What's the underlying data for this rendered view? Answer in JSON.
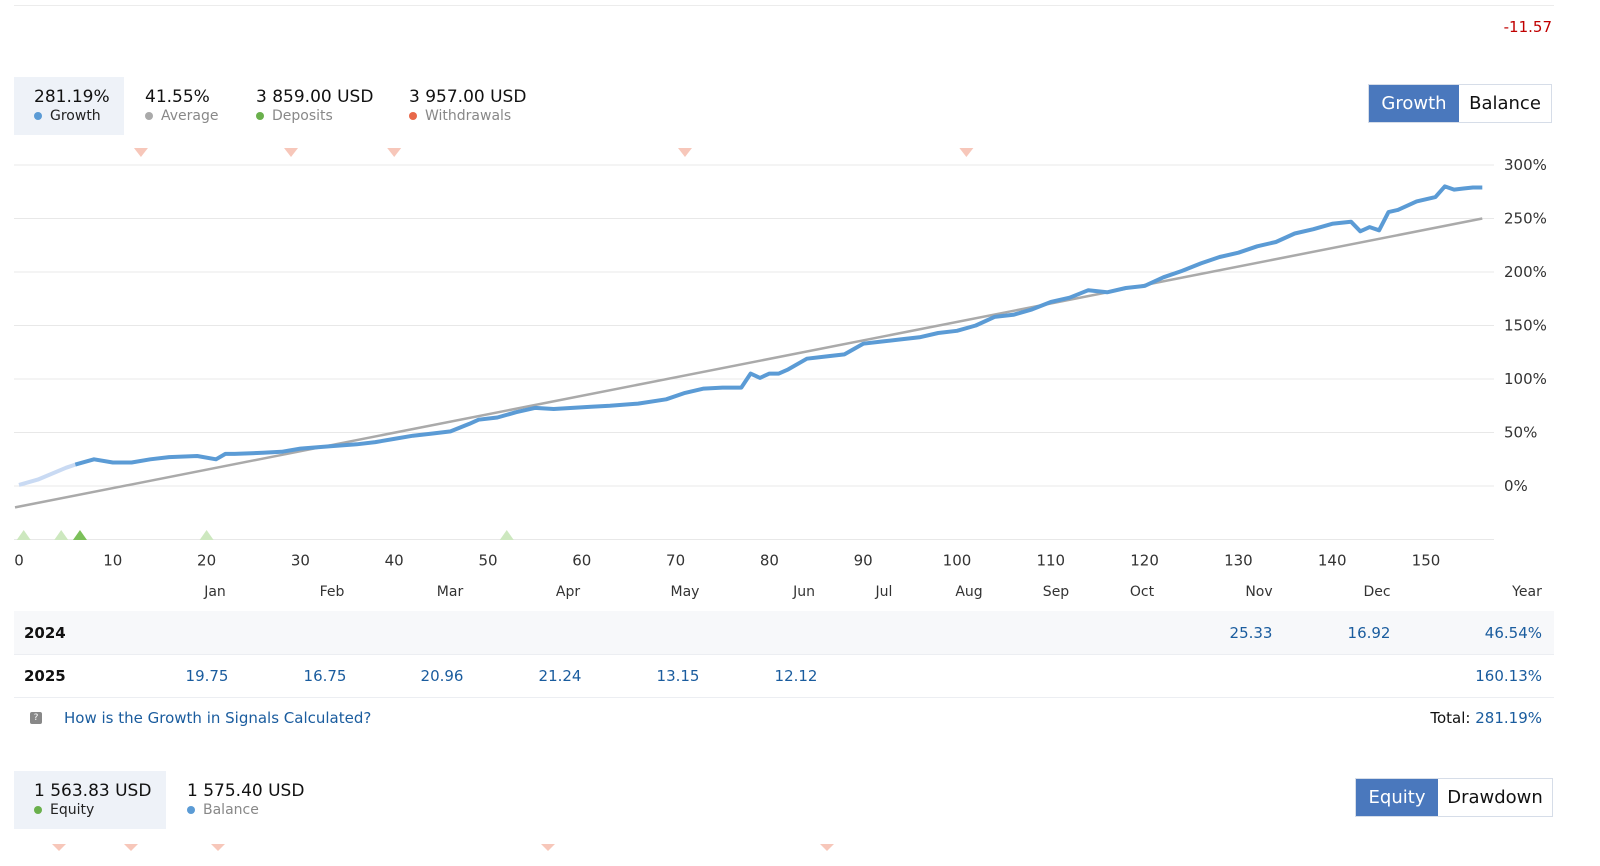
{
  "top_value": "-11.57",
  "growth_stats": [
    {
      "value": "281.19%",
      "label": "Growth",
      "color": "#5b9bd5",
      "active": true
    },
    {
      "value": "41.55%",
      "label": "Average",
      "color": "#aaaaaa",
      "active": false
    },
    {
      "value": "3 859.00 USD",
      "label": "Deposits",
      "color": "#6ab04c",
      "active": false
    },
    {
      "value": "3 957.00 USD",
      "label": "Withdrawals",
      "color": "#e8684a",
      "active": false
    }
  ],
  "growth_toggle": {
    "active": "Growth",
    "inactive": "Balance"
  },
  "chart_data": {
    "type": "line",
    "x_ticks": [
      "0",
      "10",
      "20",
      "30",
      "40",
      "50",
      "60",
      "70",
      "80",
      "90",
      "100",
      "110",
      "120",
      "130",
      "140",
      "150"
    ],
    "y_ticks": [
      "300%",
      "250%",
      "200%",
      "150%",
      "100%",
      "50%",
      "0%"
    ],
    "xlim": [
      0,
      156
    ],
    "ylim": [
      -50,
      300
    ],
    "grid": true,
    "series": [
      {
        "color": "#5b9bd5",
        "x": [
          0,
          2,
          5,
          6,
          8,
          10,
          12,
          14,
          16,
          19,
          21,
          22,
          23,
          26,
          28,
          30,
          33,
          36,
          38,
          40,
          42,
          44,
          46,
          48,
          49,
          51,
          53,
          55,
          57,
          59,
          61,
          63,
          66,
          69,
          71,
          73,
          75,
          77,
          78,
          79,
          80,
          81,
          82,
          84,
          86,
          88,
          90,
          92,
          94,
          96,
          98,
          100,
          102,
          104,
          106,
          108,
          110,
          112,
          114,
          116,
          118,
          120,
          122,
          124,
          126,
          128,
          130,
          132,
          134,
          136,
          138,
          140,
          142,
          143,
          144,
          145,
          146,
          147,
          149,
          151,
          152,
          153,
          154,
          155,
          156
        ],
        "y": [
          1,
          6,
          17,
          20,
          25,
          22,
          22,
          25,
          27,
          28,
          25,
          30,
          30,
          31,
          32,
          35,
          37,
          39,
          41,
          44,
          47,
          49,
          51,
          58,
          62,
          64,
          69,
          73,
          72,
          73,
          74,
          75,
          77,
          81,
          87,
          91,
          92,
          92,
          105,
          101,
          105,
          105,
          109,
          119,
          121,
          123,
          133,
          135,
          137,
          139,
          143,
          145,
          150,
          158,
          160,
          165,
          172,
          176,
          183,
          181,
          185,
          187,
          195,
          201,
          208,
          214,
          218,
          224,
          228,
          236,
          240,
          245,
          247,
          238,
          242,
          239,
          256,
          258,
          266,
          270,
          280,
          277,
          278,
          279,
          279
        ]
      },
      {
        "color": "#aaaaaa",
        "x": [
          0,
          156
        ],
        "y": [
          -20,
          250
        ]
      }
    ],
    "deposit_markers_x": [
      0.5,
      4.5,
      6.5,
      20,
      52
    ],
    "withdrawal_markers_x": [
      13,
      29,
      40,
      71,
      101
    ]
  },
  "monthly_table": {
    "months": [
      "Jan",
      "Feb",
      "Mar",
      "Apr",
      "May",
      "Jun",
      "Jul",
      "Aug",
      "Sep",
      "Oct",
      "Nov",
      "Dec",
      "Year"
    ],
    "rows": [
      {
        "year": "2024",
        "values": [
          "",
          "",
          "",
          "",
          "",
          "",
          "",
          "",
          "",
          "",
          "25.33",
          "16.92"
        ],
        "total": "46.54%"
      },
      {
        "year": "2025",
        "values": [
          "19.75",
          "16.75",
          "20.96",
          "21.24",
          "13.15",
          "12.12",
          "",
          "",
          "",
          "",
          "",
          ""
        ],
        "total": "160.13%"
      }
    ]
  },
  "help_link": "How is the Growth in Signals Calculated?",
  "total": {
    "label": "Total:",
    "value": "281.19%"
  },
  "equity_stats": [
    {
      "value": "1 563.83 USD",
      "label": "Equity",
      "color": "#6ab04c",
      "active": true
    },
    {
      "value": "1 575.40 USD",
      "label": "Balance",
      "color": "#5b9bd5",
      "active": false
    }
  ],
  "equity_toggle": {
    "active": "Equity",
    "inactive": "Drawdown"
  }
}
